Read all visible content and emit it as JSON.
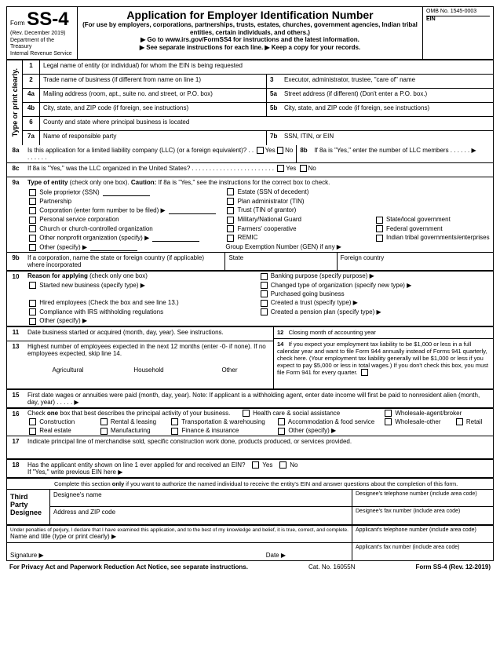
{
  "header": {
    "form_label": "Form",
    "form_num": "SS-4",
    "rev": "(Rev. December 2019)",
    "dept": "Department of the Treasury",
    "irs": "Internal Revenue Service",
    "title": "Application for Employer Identification Number",
    "subtitle": "(For use by employers, corporations, partnerships, trusts, estates, churches, government agencies, Indian tribal entities, certain individuals, and others.)",
    "goto": "▶ Go to www.irs.gov/FormSS4 for instructions and the latest information.",
    "sep": "▶ See separate instructions for each line.   ▶ Keep a copy for your records.",
    "omb": "OMB No. 1545-0003",
    "ein": "EIN"
  },
  "vertical": "Type or print clearly.",
  "l1": "Legal name of entity (or individual) for whom the EIN is being requested",
  "l2": "Trade name of business (if different from name on line 1)",
  "l3": "Executor, administrator, trustee, \"care of\" name",
  "l4a": "Mailing address (room, apt., suite no. and street, or P.O. box)",
  "l5a": "Street address (if different) (Don't enter a P.O. box.)",
  "l4b": "City, state, and ZIP code (if foreign, see instructions)",
  "l5b": "City, state, and ZIP code (if foreign, see instructions)",
  "l6": "County and state where principal business is located",
  "l7a": "Name of responsible party",
  "l7b": "SSN, ITIN, or EIN",
  "l8a": "Is this application for a limited liability company (LLC) (or a foreign equivalent)?   .   .   .   .   .   .   .   .",
  "l8b": "If 8a is \"Yes,\" enter the number of LLC members   .   .   .   .   .   .   ▶",
  "l8c": "If 8a is \"Yes,\" was the LLC organized in the United States?   .   .   .   .   .   .   .   .   .   .   .   .   .   .   .   .   .   .   .   .   .   .   .   .",
  "yes": "Yes",
  "no": "No",
  "l9a": {
    "title": "Type of entity (check only one box). Caution: If 8a is \"Yes,\" see the instructions for the correct box to check.",
    "opts": [
      [
        "Sole proprietor (SSN)",
        "Estate (SSN of decedent)",
        ""
      ],
      [
        "Partnership",
        "Plan administrator (TIN)",
        ""
      ],
      [
        "Corporation (enter form number to be filed) ▶",
        "Trust (TIN of grantor)",
        ""
      ],
      [
        "Personal service corporation",
        "Military/National Guard",
        "State/local government"
      ],
      [
        "Church or church-controlled organization",
        "Farmers' cooperative",
        "Federal government"
      ],
      [
        "Other nonprofit organization (specify) ▶",
        "REMIC",
        "Indian tribal governments/enterprises"
      ],
      [
        "Other (specify) ▶",
        "Group Exemption Number (GEN) if any ▶",
        ""
      ]
    ]
  },
  "l9b": {
    "text": "If a corporation, name the state or foreign country (if applicable) where incorporated",
    "state": "State",
    "foreign": "Foreign country"
  },
  "l10": {
    "title": "Reason for applying (check only one box)",
    "left": [
      "Started new business (specify type) ▶",
      "",
      "Hired employees (Check the box and see line 13.)",
      "Compliance with IRS withholding regulations",
      "Other (specify) ▶"
    ],
    "right": [
      "Banking purpose (specify purpose) ▶",
      "Changed type of organization (specify new type) ▶",
      "Purchased going business",
      "Created a trust (specify type) ▶",
      "Created a pension plan (specify type) ▶"
    ]
  },
  "l11": "Date business started or acquired (month, day, year). See instructions.",
  "l12": "Closing month of accounting year",
  "l13": "Highest number of employees expected in the next 12 months (enter -0- if none). If no employees expected, skip line 14.",
  "l13cols": [
    "Agricultural",
    "Household",
    "Other"
  ],
  "l14": "If you expect your employment tax liability to be $1,000 or less in a full calendar year and want to file Form 944 annually instead of Forms 941 quarterly, check here. (Your employment tax liability generally will be $1,000 or less if you expect to pay $5,000 or less in total wages.) If you don't check this box, you must file Form 941 for every quarter.",
  "l15": "First date wages or annuities were paid (month, day, year). Note: If applicant is a withholding agent, enter date income will first be paid to nonresident alien (month, day, year)   .   .   .   .   .   ▶",
  "l16": {
    "title": "Check one box that best describes the principal activity of your business.",
    "opts": [
      "Construction",
      "Rental & leasing",
      "Transportation & warehousing",
      "Health care & social assistance",
      "Accommodation & food service",
      "Wholesale-agent/broker",
      "Real estate",
      "Manufacturing",
      "Finance & insurance",
      "Wholesale-other",
      "Retail",
      "Other (specify) ▶"
    ]
  },
  "l17": "Indicate principal line of merchandise sold, specific construction work done, products produced, or services provided.",
  "l18": "Has the applicant entity shown on line 1 ever applied for and received an EIN?",
  "l18b": "If \"Yes,\" write previous EIN here ▶",
  "designee": {
    "intro": "Complete this section only if you want to authorize the named individual to receive the entity's EIN and answer questions about the completion of this form.",
    "label": "Third Party Designee",
    "name": "Designee's name",
    "addr": "Address and ZIP code",
    "dphone": "Designee's telephone number (include area code)",
    "dfax": "Designee's fax number (include area code)",
    "aphone": "Applicant's telephone number (include area code)",
    "afax": "Applicant's fax number (include area code)"
  },
  "perjury": "Under penalties of perjury, I declare that I have examined this application, and to the best of my knowledge and belief, it is true, correct, and complete.",
  "nametitle": "Name and title (type or print clearly) ▶",
  "sig": "Signature ▶",
  "date": "Date ▶",
  "footer": {
    "privacy": "For Privacy Act and Paperwork Reduction Act Notice, see separate instructions.",
    "cat": "Cat. No. 16055N",
    "form": "Form SS-4 (Rev. 12-2019)"
  }
}
